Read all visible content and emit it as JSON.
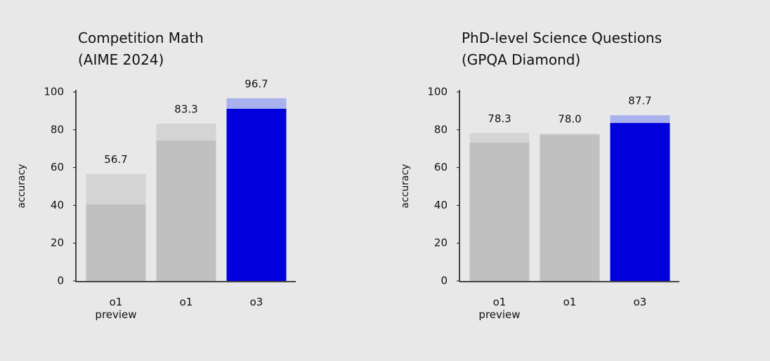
{
  "chart_data": [
    {
      "type": "bar",
      "title": "Competition Math (AIME 2024)",
      "y_label": "accuracy",
      "categories": [
        "o1 preview",
        "o1",
        "o3"
      ],
      "series": [
        {
          "color": [
            "#d4d4d4",
            "#d4d4d4",
            "#a9b2ec"
          ],
          "values": [
            56.7,
            83.3,
            96.7
          ],
          "value_labels": [
            "56.7",
            "83.3",
            "96.7"
          ]
        },
        {
          "color": [
            "#c0c0c0",
            "#c0c0c0",
            "#0000dc"
          ],
          "values": [
            40.5,
            74.3,
            91.1
          ]
        }
      ],
      "ylim": [
        0,
        100
      ],
      "yticks": [
        0,
        20,
        40,
        60,
        80,
        100
      ]
    },
    {
      "type": "bar",
      "title": "PhD-level Science Questions (GPQA Diamond)",
      "y_label": "accuracy",
      "categories": [
        "o1 preview",
        "o1",
        "o3"
      ],
      "series": [
        {
          "color": [
            "#d4d4d4",
            "#d4d4d4",
            "#a9b2ec"
          ],
          "values": [
            78.3,
            78.0,
            87.7
          ],
          "value_labels": [
            "78.3",
            "78.0",
            "87.7"
          ]
        },
        {
          "color": [
            "#c0c0c0",
            "#c0c0c0",
            "#0000dc"
          ],
          "values": [
            73.2,
            77.3,
            83.6
          ]
        }
      ],
      "ylim": [
        0,
        100
      ],
      "yticks": [
        0,
        20,
        40,
        60,
        80,
        100
      ]
    }
  ]
}
